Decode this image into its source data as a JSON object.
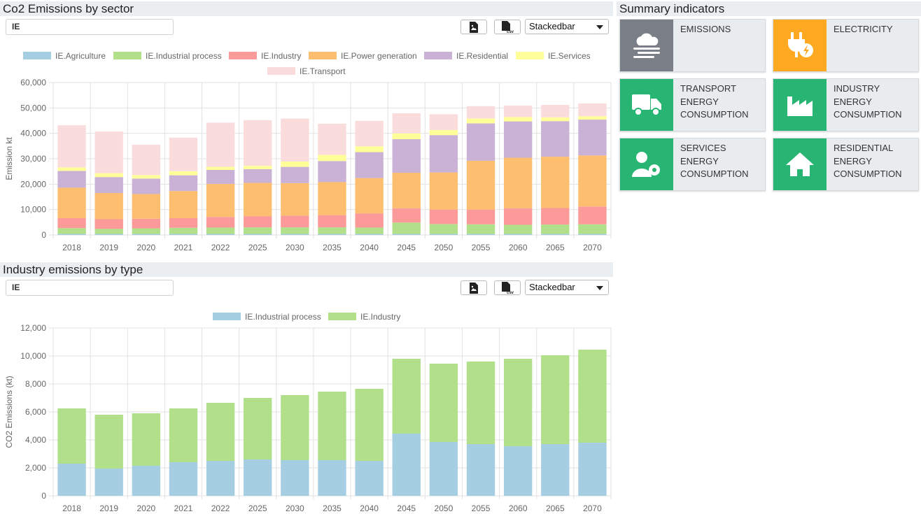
{
  "chart1": {
    "section_title": "Co2 Emissions by sector",
    "country_value": "IE",
    "chart_type": "Stackedbar",
    "export_image_icon": "image-file-icon",
    "export_csv_icon": "csv-file-icon"
  },
  "chart2": {
    "section_title": "Industry emissions by type",
    "country_value": "IE",
    "chart_type": "Stackedbar",
    "export_image_icon": "image-file-icon",
    "export_csv_icon": "csv-file-icon"
  },
  "summary": {
    "title": "Summary indicators",
    "tiles": [
      {
        "label": "EMISSIONS",
        "icon": "smog-icon",
        "color": "#7a7e86"
      },
      {
        "label": "ELECTRICITY",
        "icon": "plug-bolt-icon",
        "color": "#ffa923"
      },
      {
        "label": "TRANSPORT ENERGY CONSUMPTION",
        "icon": "truck-icon",
        "color": "#28b473"
      },
      {
        "label": "INDUSTRY ENERGY CONSUMPTION",
        "icon": "factory-icon",
        "color": "#28b473"
      },
      {
        "label": "SERVICES ENERGY CONSUMPTION",
        "icon": "user-gear-icon",
        "color": "#28b473"
      },
      {
        "label": "RESIDENTIAL ENERGY CONSUMPTION",
        "icon": "house-icon",
        "color": "#28b473"
      }
    ]
  },
  "chart_data": [
    {
      "type": "bar",
      "stacked": true,
      "title": "Co2 Emissions by sector",
      "xlabel": "",
      "ylabel": "Emission kt",
      "ylim": [
        0,
        60000
      ],
      "yticks": [
        0,
        10000,
        20000,
        30000,
        40000,
        50000,
        60000
      ],
      "ytick_labels": [
        "0",
        "10,000",
        "20,000",
        "30,000",
        "40,000",
        "50,000",
        "60,000"
      ],
      "grid": true,
      "legend": "top",
      "categories": [
        "2018",
        "2019",
        "2020",
        "2021",
        "2022",
        "2025",
        "2030",
        "2035",
        "2040",
        "2045",
        "2050",
        "2055",
        "2060",
        "2065",
        "2070"
      ],
      "series": [
        {
          "name": "IE.Agriculture",
          "color": "#a6cee3",
          "values": [
            400,
            400,
            400,
            400,
            400,
            400,
            400,
            400,
            400,
            400,
            400,
            400,
            400,
            400,
            400
          ]
        },
        {
          "name": "IE.Industrial process",
          "color": "#b2df8a",
          "values": [
            2300,
            2000,
            2200,
            2400,
            2500,
            2600,
            2600,
            2600,
            2500,
            4500,
            3900,
            3800,
            3600,
            3700,
            3800
          ]
        },
        {
          "name": "IE.Industry",
          "color": "#fb9a99",
          "values": [
            3900,
            3800,
            3800,
            3800,
            4200,
            4400,
            4600,
            4800,
            5600,
            5600,
            5700,
            5800,
            6500,
            6500,
            7000
          ]
        },
        {
          "name": "IE.Power generation",
          "color": "#fdbf6f",
          "values": [
            12000,
            10300,
            9700,
            10700,
            13000,
            13100,
            12800,
            13000,
            13900,
            14000,
            14600,
            19200,
            19900,
            20200,
            20100
          ]
        },
        {
          "name": "IE.Residential",
          "color": "#cab2d6",
          "values": [
            6600,
            6300,
            6100,
            6200,
            5500,
            5400,
            6400,
            8300,
            10200,
            13200,
            14700,
            14700,
            14300,
            14000,
            14100
          ]
        },
        {
          "name": "IE.Services",
          "color": "#ffff99",
          "values": [
            1400,
            1500,
            1400,
            1600,
            1200,
            1300,
            2100,
            2400,
            2300,
            2300,
            2000,
            1900,
            1700,
            1500,
            1300
          ]
        },
        {
          "name": "IE.Transport",
          "color": "#fadcdc",
          "values": [
            16600,
            16400,
            11900,
            13200,
            17400,
            18000,
            16900,
            12300,
            10000,
            7900,
            6200,
            4900,
            4500,
            4900,
            5100
          ]
        }
      ]
    },
    {
      "type": "bar",
      "stacked": true,
      "title": "Industry emissions by type",
      "xlabel": "",
      "ylabel": "CO2 Emissions (kt)",
      "ylim": [
        0,
        12000
      ],
      "yticks": [
        0,
        2000,
        4000,
        6000,
        8000,
        10000,
        12000
      ],
      "ytick_labels": [
        "0",
        "2,000",
        "4,000",
        "6,000",
        "8,000",
        "10,000",
        "12,000"
      ],
      "grid": true,
      "legend": "top",
      "categories": [
        "2018",
        "2019",
        "2020",
        "2021",
        "2022",
        "2025",
        "2030",
        "2035",
        "2040",
        "2045",
        "2050",
        "2055",
        "2060",
        "2065",
        "2070"
      ],
      "series": [
        {
          "name": "IE.Industrial process",
          "color": "#a6cee3",
          "values": [
            2300,
            1950,
            2150,
            2400,
            2500,
            2600,
            2550,
            2550,
            2500,
            4450,
            3850,
            3700,
            3550,
            3700,
            3800
          ]
        },
        {
          "name": "IE.Industry",
          "color": "#b2df8a",
          "values": [
            3950,
            3850,
            3750,
            3850,
            4150,
            4400,
            4650,
            4900,
            5150,
            5350,
            5600,
            5900,
            6250,
            6350,
            6650
          ]
        }
      ]
    }
  ]
}
